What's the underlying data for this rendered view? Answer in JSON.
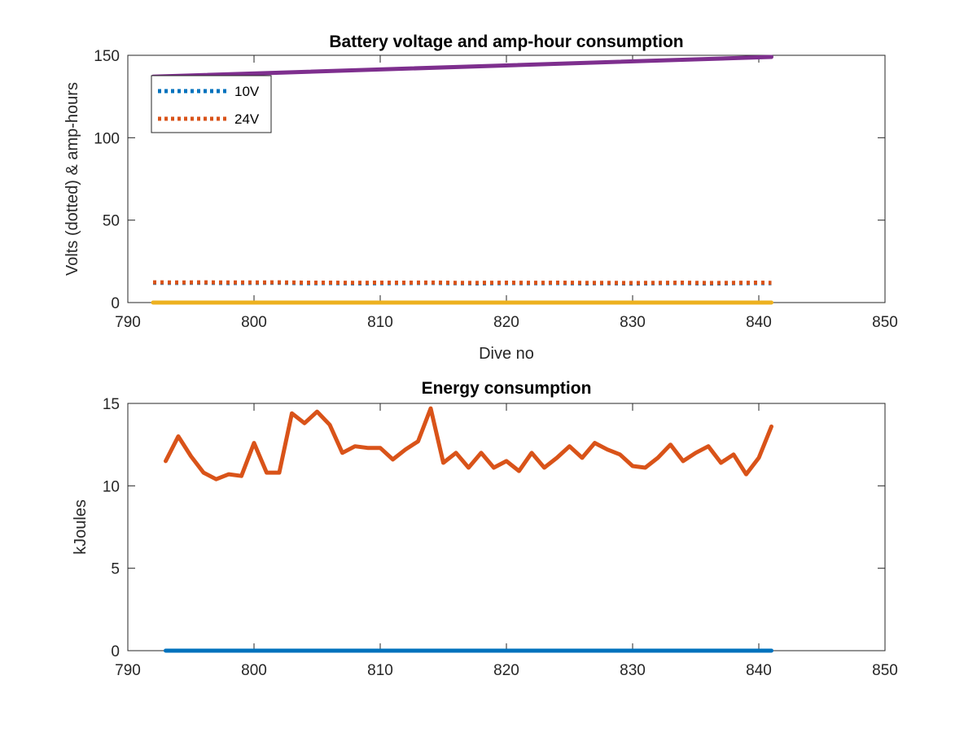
{
  "chart_data": [
    {
      "type": "line",
      "title": "Battery voltage and amp-hour consumption",
      "xlabel": "Dive no",
      "ylabel": "Volts (dotted) & amp-hours",
      "xlim": [
        790,
        850
      ],
      "ylim": [
        0,
        150
      ],
      "xticks": [
        790,
        800,
        810,
        820,
        830,
        840,
        850
      ],
      "yticks": [
        0,
        50,
        100,
        150
      ],
      "grid": false,
      "legend": {
        "placement": "top-left",
        "entries": [
          "10V",
          "24V"
        ]
      },
      "series": [
        {
          "name": "10V",
          "style": "dotted",
          "color": "#0072BD",
          "x": [
            792,
            794,
            796,
            798,
            800,
            802,
            804,
            806,
            808,
            810,
            812,
            814,
            816,
            818,
            820,
            822,
            824,
            826,
            828,
            830,
            832,
            834,
            836,
            838,
            840,
            841
          ],
          "y": [
            12.0,
            11.9,
            12.0,
            11.8,
            11.9,
            12.0,
            11.7,
            11.8,
            11.6,
            11.7,
            11.8,
            11.9,
            11.7,
            11.6,
            11.8,
            11.7,
            11.8,
            11.6,
            11.7,
            11.5,
            11.7,
            11.8,
            11.5,
            11.7,
            11.8,
            11.7
          ]
        },
        {
          "name": "24V",
          "style": "dotted",
          "color": "#D95319",
          "x": [
            792,
            794,
            796,
            798,
            800,
            802,
            804,
            806,
            808,
            810,
            812,
            814,
            816,
            818,
            820,
            822,
            824,
            826,
            828,
            830,
            832,
            834,
            836,
            838,
            840,
            841
          ],
          "y": [
            12.3,
            12.2,
            12.3,
            12.2,
            12.2,
            12.3,
            12.1,
            12.1,
            12.0,
            12.1,
            12.1,
            12.2,
            12.0,
            12.0,
            12.1,
            12.0,
            12.1,
            12.0,
            12.0,
            11.9,
            12.0,
            12.1,
            11.9,
            12.0,
            12.1,
            12.0
          ]
        },
        {
          "style": "solid",
          "color": "#EDB120",
          "x": [
            792,
            841
          ],
          "y": [
            0,
            0
          ]
        },
        {
          "style": "solid",
          "color": "#7E2F8E",
          "x": [
            792,
            841
          ],
          "y": [
            137,
            149
          ]
        }
      ]
    },
    {
      "type": "line",
      "title": "Energy consumption",
      "xlabel": "",
      "ylabel": "kJoules",
      "xlim": [
        790,
        850
      ],
      "ylim": [
        0,
        15
      ],
      "xticks": [
        790,
        800,
        810,
        820,
        830,
        840,
        850
      ],
      "yticks": [
        0,
        5,
        10,
        15
      ],
      "grid": false,
      "series": [
        {
          "style": "solid",
          "color": "#D95319",
          "x": [
            793,
            794,
            795,
            796,
            797,
            798,
            799,
            800,
            801,
            802,
            803,
            804,
            805,
            806,
            807,
            808,
            809,
            810,
            811,
            812,
            813,
            814,
            815,
            816,
            817,
            818,
            819,
            820,
            821,
            822,
            823,
            824,
            825,
            826,
            827,
            828,
            829,
            830,
            831,
            832,
            833,
            834,
            835,
            836,
            837,
            838,
            839,
            840,
            841
          ],
          "y": [
            11.5,
            13.0,
            11.8,
            10.8,
            10.4,
            10.7,
            10.6,
            12.6,
            10.8,
            10.8,
            14.4,
            13.8,
            14.5,
            13.7,
            12.0,
            12.4,
            12.3,
            12.3,
            11.6,
            12.2,
            12.7,
            14.7,
            11.4,
            12.0,
            11.1,
            12.0,
            11.1,
            11.5,
            10.9,
            12.0,
            11.1,
            11.7,
            12.4,
            11.7,
            12.6,
            12.2,
            11.9,
            11.2,
            11.1,
            11.7,
            12.5,
            11.5,
            12.0,
            12.4,
            11.4,
            11.9,
            10.7,
            11.7,
            13.6
          ]
        },
        {
          "style": "solid",
          "color": "#0072BD",
          "x": [
            793,
            841
          ],
          "y": [
            0,
            0
          ]
        }
      ]
    }
  ]
}
